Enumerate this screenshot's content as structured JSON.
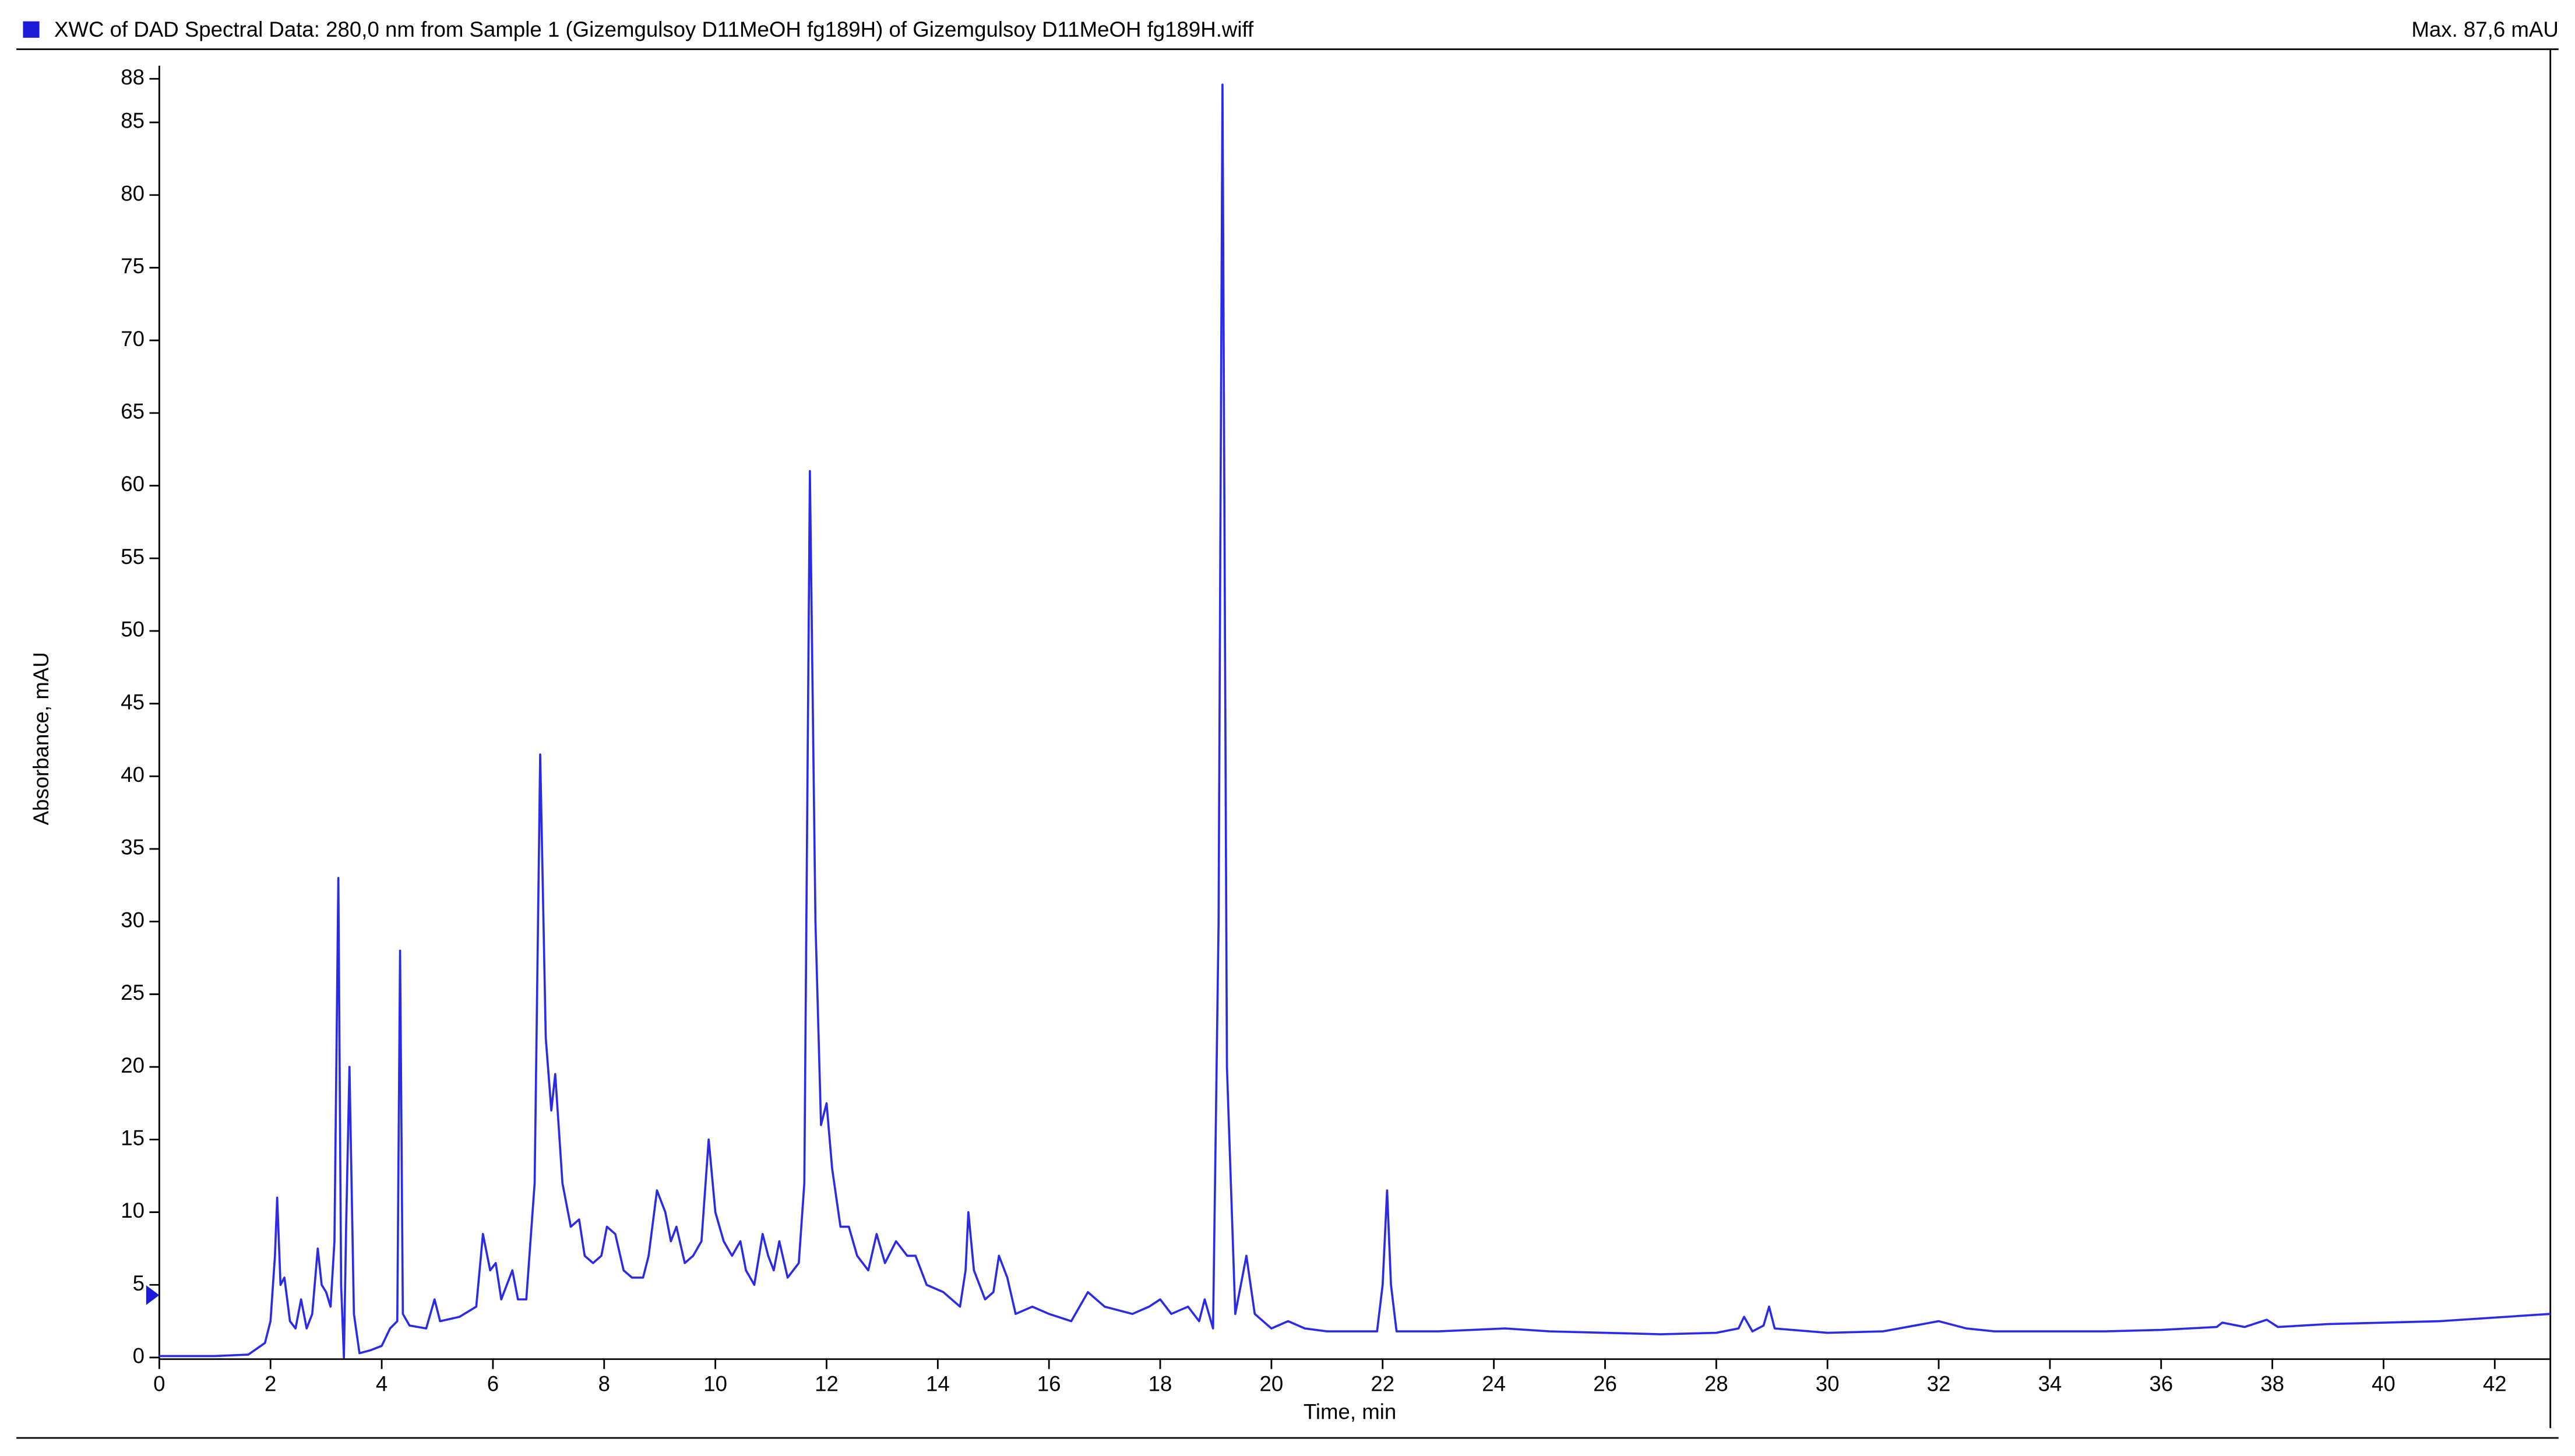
{
  "chart_data": {
    "type": "line",
    "title": "XWC of DAD Spectral Data: 280,0 nm from Sample 1 (Gizemgulsoy D11MeOH fg189H) of Gizemgulsoy D11MeOH fg189H.wiff",
    "max_label": "Max. 87,6 mAU",
    "x_label": "Time, min",
    "y_label": "Absorbance, mAU",
    "color": "#2b2be6",
    "xlim": [
      0,
      43
    ],
    "ylim": [
      0,
      88
    ],
    "xticks": [
      0,
      2,
      4,
      6,
      8,
      10,
      12,
      14,
      16,
      18,
      20,
      22,
      24,
      26,
      28,
      30,
      32,
      34,
      36,
      38,
      40,
      42
    ],
    "yticks": [
      0,
      5,
      10,
      15,
      20,
      25,
      30,
      35,
      40,
      45,
      50,
      55,
      60,
      65,
      70,
      75,
      80,
      85,
      88
    ],
    "x": [
      0,
      1,
      1.6,
      1.9,
      2.0,
      2.08,
      2.12,
      2.18,
      2.25,
      2.35,
      2.45,
      2.55,
      2.65,
      2.75,
      2.85,
      2.92,
      3.0,
      3.08,
      3.15,
      3.22,
      3.27,
      3.32,
      3.36,
      3.42,
      3.5,
      3.6,
      3.8,
      4.0,
      4.15,
      4.28,
      4.33,
      4.38,
      4.5,
      4.8,
      4.95,
      5.05,
      5.4,
      5.7,
      5.82,
      5.95,
      6.05,
      6.15,
      6.35,
      6.45,
      6.6,
      6.75,
      6.85,
      6.95,
      7.05,
      7.12,
      7.25,
      7.4,
      7.55,
      7.65,
      7.8,
      7.95,
      8.05,
      8.2,
      8.35,
      8.5,
      8.7,
      8.8,
      8.95,
      9.1,
      9.2,
      9.3,
      9.45,
      9.6,
      9.75,
      9.88,
      10.0,
      10.15,
      10.3,
      10.45,
      10.55,
      10.7,
      10.85,
      10.95,
      11.05,
      11.15,
      11.3,
      11.5,
      11.6,
      11.7,
      11.8,
      11.9,
      12.0,
      12.1,
      12.25,
      12.4,
      12.55,
      12.75,
      12.9,
      13.05,
      13.25,
      13.45,
      13.6,
      13.8,
      14.1,
      14.4,
      14.5,
      14.55,
      14.65,
      14.85,
      15.0,
      15.1,
      15.25,
      15.4,
      15.7,
      16.0,
      16.4,
      16.7,
      17.0,
      17.5,
      17.8,
      18.0,
      18.2,
      18.5,
      18.7,
      18.8,
      18.95,
      19.05,
      19.12,
      19.2,
      19.35,
      19.45,
      19.55,
      19.7,
      20.0,
      20.3,
      20.6,
      21.0,
      21.9,
      22.0,
      22.08,
      22.15,
      22.25,
      23,
      24.2,
      25,
      27,
      28,
      28.4,
      28.5,
      28.65,
      28.85,
      28.95,
      29.05,
      30,
      31,
      32,
      32.5,
      33,
      35,
      36,
      37,
      37.1,
      37.5,
      37.9,
      38.1,
      39,
      41,
      43
    ],
    "values": [
      0.1,
      0.1,
      0.2,
      1,
      2.5,
      7,
      11,
      5,
      5.5,
      2.5,
      2,
      4,
      2,
      3,
      7.5,
      5,
      4.5,
      3.5,
      8,
      33,
      5,
      0,
      9,
      20,
      3,
      0.3,
      0.5,
      0.8,
      2,
      2.5,
      28,
      3,
      2.2,
      2,
      4,
      2.5,
      2.8,
      3.5,
      8.5,
      6,
      6.5,
      4,
      6,
      4,
      4,
      12,
      41.5,
      22,
      17,
      19.5,
      12,
      9,
      9.5,
      7,
      6.5,
      7,
      9,
      8.5,
      6,
      5.5,
      5.5,
      7,
      11.5,
      10,
      8,
      9,
      6.5,
      7,
      8,
      15,
      10,
      8,
      7,
      8,
      6,
      5,
      8.5,
      7,
      6,
      8,
      5.5,
      6.5,
      12,
      61,
      30,
      16,
      17.5,
      13,
      9,
      9,
      7,
      6,
      8.5,
      6.5,
      8,
      7,
      7,
      5,
      4.5,
      3.5,
      6,
      10,
      6,
      4,
      4.5,
      7,
      5.5,
      3,
      3.5,
      3,
      2.5,
      4.5,
      3.5,
      3,
      3.5,
      4,
      3,
      3.5,
      2.5,
      4,
      2,
      30,
      87.6,
      20,
      3,
      5,
      7,
      3,
      2,
      2.5,
      2,
      1.8,
      1.8,
      5,
      11.5,
      5,
      1.8,
      1.8,
      2,
      1.8,
      1.6,
      1.7,
      2,
      2.8,
      1.8,
      2.2,
      3.5,
      2,
      1.7,
      1.8,
      2.5,
      2,
      1.8,
      1.8,
      1.9,
      2.1,
      2.4,
      2.1,
      2.6,
      2.1,
      2.3,
      2.5,
      3
    ]
  }
}
